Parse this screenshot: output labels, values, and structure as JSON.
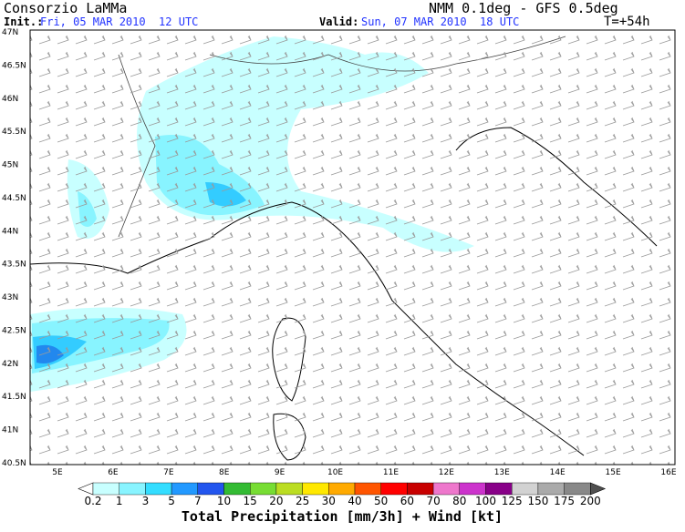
{
  "header": {
    "title": "Consorzio LaMMa",
    "model": "NMM 0.1deg - GFS 0.5deg",
    "init_label": "Init.:",
    "init_value": "Fri, 05 MAR 2010  12 UTC",
    "valid_label": "Valid:",
    "valid_value": "Sun, 07 MAR 2010  18 UTC",
    "lead_time": "T=+54h"
  },
  "map": {
    "lat_labels": [
      "47N",
      "46.5N",
      "46N",
      "45.5N",
      "45N",
      "44.5N",
      "44N",
      "43.5N",
      "43N",
      "42.5N",
      "42N",
      "41.5N",
      "41N",
      "40.5N"
    ],
    "lon_labels": [
      "5E",
      "6E",
      "7E",
      "8E",
      "9E",
      "10E",
      "11E",
      "12E",
      "13E",
      "14E",
      "15E",
      "16E"
    ]
  },
  "colorbar": {
    "labels": [
      "0.2",
      "1",
      "3",
      "5",
      "7",
      "10",
      "15",
      "20",
      "25",
      "30",
      "40",
      "50",
      "60",
      "70",
      "80",
      "100",
      "125",
      "150",
      "175",
      "200"
    ],
    "colors": [
      "#ffffff",
      "#c8ffff",
      "#88f4ff",
      "#33ddff",
      "#2299ff",
      "#2255ee",
      "#33bb33",
      "#77dd33",
      "#bbdd22",
      "#ffe800",
      "#ffaa00",
      "#ff5500",
      "#ff0000",
      "#c80000",
      "#ee77cc",
      "#cc33cc",
      "#880088",
      "#d2d2d2",
      "#aaaaaa",
      "#888888",
      "#505050"
    ],
    "title": "Total Precipitation [mm/3h] + Wind [kt]"
  }
}
